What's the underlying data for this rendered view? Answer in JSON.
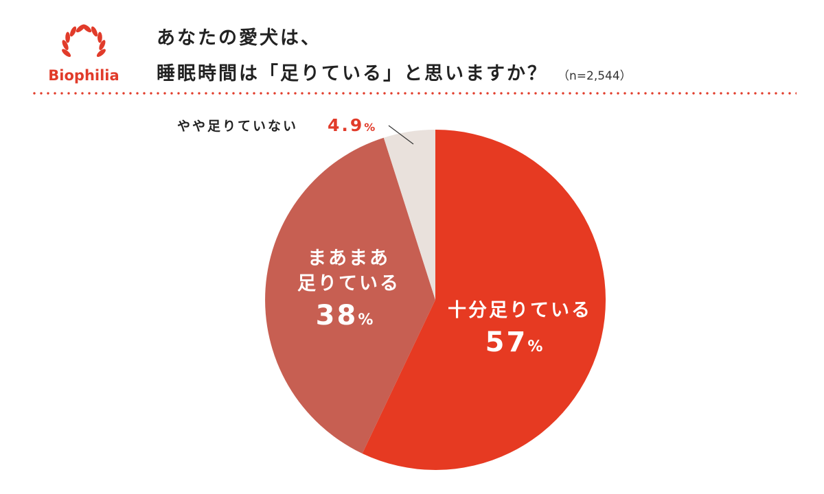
{
  "brand": {
    "name": "Biophilia",
    "color": "#e13b2a"
  },
  "title": {
    "line1": "あなたの愛犬は、",
    "line2": "睡眠時間は「足りている」と思いますか？",
    "sample": "（n=2,544）"
  },
  "chart_data": {
    "type": "pie",
    "start": "12 o'clock, clockwise",
    "slices": [
      {
        "label": "十分足りている",
        "value": 57,
        "value_text": "57",
        "unit": "%",
        "color": "#e63a22",
        "label_color": "#ffffff"
      },
      {
        "label_lines": [
          "まあまあ",
          "足りている"
        ],
        "label": "まあまあ足りている",
        "value": 38,
        "value_text": "38",
        "unit": "%",
        "color": "#c75f52",
        "label_color": "#ffffff"
      },
      {
        "label": "やや足りていない",
        "value": 4.9,
        "value_text": "4.9",
        "unit": "%",
        "color": "#e9e1dc",
        "label_color": "#222222",
        "value_color": "#e13b2a"
      }
    ]
  }
}
